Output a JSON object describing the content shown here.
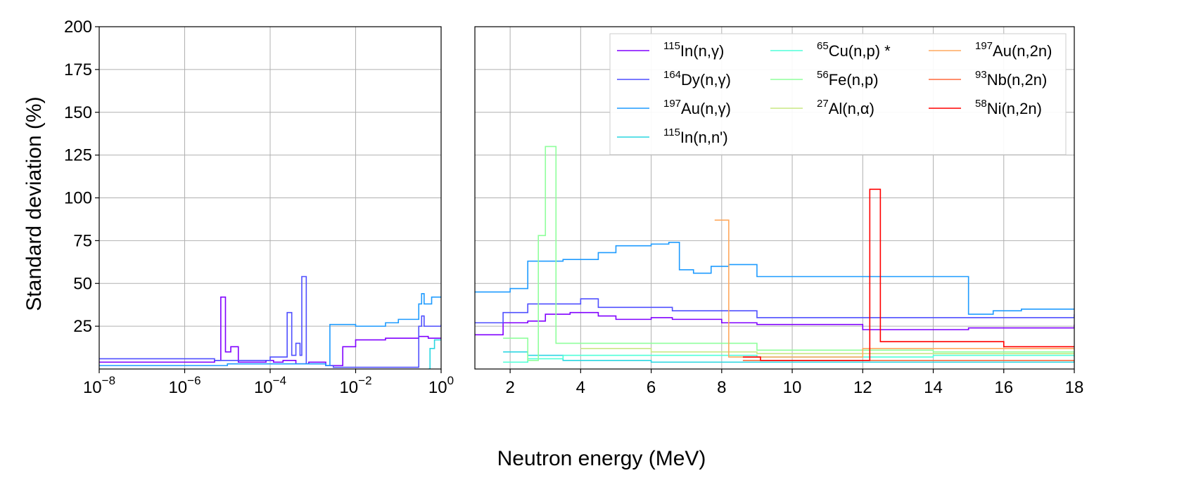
{
  "chart_data": {
    "type": "line",
    "ylabel": "Standard deviation (%)",
    "xlabel": "Neutron energy (MeV)",
    "ylim": [
      0,
      200
    ],
    "yticks": [
      25,
      50,
      75,
      100,
      125,
      150,
      175,
      200
    ],
    "grid": true,
    "legend_position": "top-right",
    "panels": [
      {
        "name": "low-energy",
        "xscale": "log",
        "xlim": [
          1e-08,
          1
        ],
        "xticks": [
          {
            "base": "10",
            "exp": "−8",
            "value": 1e-08
          },
          {
            "base": "10",
            "exp": "−6",
            "value": 1e-06
          },
          {
            "base": "10",
            "exp": "−4",
            "value": 0.0001
          },
          {
            "base": "10",
            "exp": "−2",
            "value": 0.01
          },
          {
            "base": "10",
            "exp": "0",
            "value": 1
          }
        ]
      },
      {
        "name": "high-energy",
        "xscale": "linear",
        "xlim": [
          1,
          18
        ],
        "xticks": [
          {
            "label": "2",
            "value": 2
          },
          {
            "label": "4",
            "value": 4
          },
          {
            "label": "6",
            "value": 6
          },
          {
            "label": "8",
            "value": 8
          },
          {
            "label": "10",
            "value": 10
          },
          {
            "label": "12",
            "value": 12
          },
          {
            "label": "14",
            "value": 14
          },
          {
            "label": "16",
            "value": 16
          },
          {
            "label": "18",
            "value": 18
          }
        ]
      }
    ],
    "series": [
      {
        "id": "in115-ng",
        "sup": "115",
        "name": "In(n,γ)",
        "color": "#8000ff",
        "low": {
          "x": [
            1e-08,
            1e-06,
            5e-06,
            7e-06,
            9e-06,
            1.2e-05,
            1.8e-05,
            5e-05,
            8e-05,
            0.00012,
            0.0002,
            0.0004,
            0.0008,
            0.002,
            0.005,
            0.01,
            0.05,
            0.3,
            0.5,
            1
          ],
          "y": [
            4,
            4,
            5,
            42,
            10,
            13,
            4,
            4,
            5,
            4,
            5,
            3,
            4,
            2,
            13,
            17,
            18,
            19,
            18,
            18
          ]
        },
        "high": {
          "x": [
            1,
            1.8,
            2.5,
            3,
            3.7,
            4.5,
            5,
            6,
            6.6,
            8,
            9,
            12,
            15,
            16.5,
            18
          ],
          "y": [
            20,
            27,
            28,
            32,
            33,
            31,
            29,
            30,
            29,
            27,
            26,
            23,
            24,
            24,
            26
          ]
        }
      },
      {
        "id": "dy164-ng",
        "sup": "164",
        "name": "Dy(n,γ)",
        "color": "#4f4fff",
        "low": {
          "x": [
            1e-08,
            1e-06,
            5e-06,
            5e-05,
            0.0001,
            0.00025,
            0.00032,
            0.0004,
            0.0005,
            0.00055,
            0.0007,
            0.002,
            0.003,
            0.3,
            0.35,
            0.4,
            1
          ],
          "y": [
            6,
            6,
            5,
            5,
            7,
            33,
            8,
            15,
            8,
            54,
            3,
            2,
            1,
            25,
            31,
            25,
            26
          ]
        },
        "high": {
          "x": [
            1,
            1.8,
            2.5,
            4,
            4.5,
            6.6,
            9,
            18
          ],
          "y": [
            27,
            33,
            38,
            41,
            36,
            34,
            30,
            32
          ]
        }
      },
      {
        "id": "au197-ng",
        "sup": "197",
        "name": "Au(n,γ)",
        "color": "#1e9bff",
        "low": {
          "x": [
            1e-08,
            1e-06,
            1e-05,
            0.0001,
            0.001,
            0.002,
            0.0025,
            0.01,
            0.05,
            0.1,
            0.3,
            0.35,
            0.4,
            0.6,
            1
          ],
          "y": [
            2,
            2,
            3,
            3,
            3,
            2,
            26,
            25,
            27,
            29,
            38,
            44,
            38,
            42,
            42
          ]
        },
        "high": {
          "x": [
            1,
            2,
            2.5,
            3.5,
            4.5,
            5,
            6,
            6.5,
            6.8,
            7.2,
            7.7,
            8.2,
            9,
            15,
            15.7,
            16.5,
            18
          ],
          "y": [
            45,
            47,
            63,
            64,
            68,
            72,
            73,
            74,
            58,
            56,
            60,
            61,
            54,
            32,
            34,
            35,
            35
          ]
        }
      },
      {
        "id": "in115-nn",
        "sup": "115",
        "name": "In(n,n')",
        "color": "#2ad6e1",
        "low": {
          "x": [
            0.5,
            0.55,
            0.7,
            1
          ],
          "y": [
            0,
            12,
            17,
            17
          ]
        },
        "high": {
          "x": [
            1.8,
            2.5,
            3.5,
            6,
            9,
            18
          ],
          "y": [
            10,
            8,
            5,
            4,
            4,
            5
          ]
        }
      },
      {
        "id": "cu65-np",
        "sup": "65",
        "name": "Cu(n,p) *",
        "color": "#4fffd8",
        "low": null,
        "high": {
          "x": [
            1.8,
            2.5,
            3.5,
            9,
            14,
            18
          ],
          "y": [
            4,
            6,
            8,
            7,
            8,
            7
          ]
        }
      },
      {
        "id": "fe56-np",
        "sup": "56",
        "name": "Fe(n,p)",
        "color": "#8fff9c",
        "low": null,
        "high": {
          "x": [
            1.8,
            2.5,
            2.8,
            3,
            3.3,
            4,
            9,
            14,
            18
          ],
          "y": [
            18,
            5,
            78,
            130,
            15,
            15,
            11,
            10,
            10
          ]
        }
      },
      {
        "id": "al27-na",
        "sup": "27",
        "name": "Al(n,α)",
        "color": "#c8e884",
        "low": null,
        "high": {
          "x": [
            4,
            5,
            6,
            9,
            12,
            18
          ],
          "y": [
            12,
            12,
            10,
            9,
            9,
            9
          ]
        }
      },
      {
        "id": "au197-n2n",
        "sup": "197",
        "name": "Au(n,2n)",
        "color": "#ffa95e",
        "low": null,
        "high": {
          "x": [
            7.8,
            8.2,
            9,
            12,
            18
          ],
          "y": [
            87,
            7,
            7,
            12,
            11
          ]
        }
      },
      {
        "id": "nb93-n2n",
        "sup": "93",
        "name": "Nb(n,2n)",
        "color": "#ff6a3d",
        "low": null,
        "high": {
          "x": [
            8.6,
            9,
            12,
            18
          ],
          "y": [
            5,
            5,
            5,
            5
          ]
        }
      },
      {
        "id": "ni58-n2n",
        "sup": "58",
        "name": "Ni(n,2n)",
        "color": "#ff0000",
        "low": null,
        "high": {
          "x": [
            8.6,
            9.1,
            12.2,
            12.5,
            16,
            18
          ],
          "y": [
            7,
            5,
            105,
            16,
            13,
            13
          ]
        }
      }
    ]
  }
}
